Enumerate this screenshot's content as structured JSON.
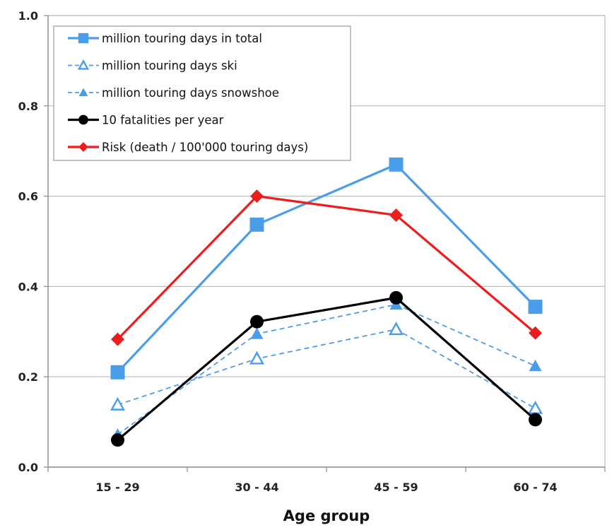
{
  "chart_data": {
    "type": "line",
    "title": "",
    "xlabel": "Age group",
    "ylabel": "",
    "categories": [
      "15 - 29",
      "30 - 44",
      "45 - 59",
      "60 - 74"
    ],
    "ylim": [
      0,
      1.0
    ],
    "yticks": [
      "0.0",
      "0.2",
      "0.4",
      "0.6",
      "0.8",
      "1.0"
    ],
    "ytick_values": [
      0,
      0.2,
      0.4,
      0.6,
      0.8,
      1.0
    ],
    "grid": "horizontal",
    "legend_position": "top-left",
    "series": [
      {
        "name": "million touring days in total",
        "values": [
          0.21,
          0.537,
          0.67,
          0.355
        ],
        "color": "#4a9de8",
        "marker": "square",
        "dash": "solid"
      },
      {
        "name": "million touring days ski",
        "values": [
          0.138,
          0.24,
          0.305,
          0.13
        ],
        "color": "#4a9de8",
        "marker": "triangle-open",
        "dash": "dashed"
      },
      {
        "name": "million touring days snowshoe",
        "values": [
          0.072,
          0.295,
          0.36,
          0.224
        ],
        "color": "#4a9de8",
        "marker": "triangle",
        "dash": "dashed"
      },
      {
        "name": "10 fatalities per year",
        "values": [
          0.06,
          0.322,
          0.375,
          0.105
        ],
        "color": "#000000",
        "marker": "circle",
        "dash": "solid"
      },
      {
        "name": "Risk (death / 100'000 touring days)",
        "values": [
          0.283,
          0.6,
          0.558,
          0.297
        ],
        "color": "#ee1c1c",
        "marker": "diamond",
        "dash": "solid"
      }
    ]
  }
}
